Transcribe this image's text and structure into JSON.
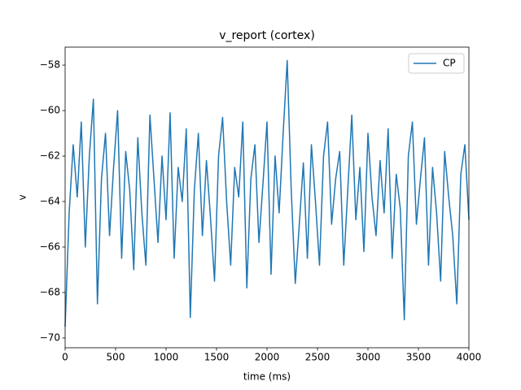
{
  "chart_data": {
    "type": "line",
    "title": "v_report (cortex)",
    "x_label": "time (ms)",
    "y_label": "v",
    "x": [
      0,
      40,
      80,
      120,
      160,
      200,
      240,
      280,
      320,
      360,
      400,
      440,
      480,
      520,
      560,
      600,
      640,
      680,
      720,
      760,
      800,
      840,
      880,
      920,
      960,
      1000,
      1040,
      1080,
      1120,
      1160,
      1200,
      1240,
      1280,
      1320,
      1360,
      1400,
      1440,
      1480,
      1520,
      1560,
      1600,
      1640,
      1680,
      1720,
      1760,
      1800,
      1840,
      1880,
      1920,
      1960,
      2000,
      2040,
      2080,
      2120,
      2160,
      2200,
      2240,
      2280,
      2320,
      2360,
      2400,
      2440,
      2480,
      2520,
      2560,
      2600,
      2640,
      2680,
      2720,
      2760,
      2800,
      2840,
      2880,
      2920,
      2960,
      3000,
      3040,
      3080,
      3120,
      3160,
      3200,
      3240,
      3280,
      3320,
      3360,
      3400,
      3440,
      3480,
      3520,
      3560,
      3600,
      3640,
      3680,
      3720,
      3760,
      3800,
      3840,
      3880,
      3920,
      3960,
      4000
    ],
    "series": [
      {
        "name": "CP",
        "color": "#1f77b4",
        "values": [
          -69.5,
          -64.5,
          -61.5,
          -63.8,
          -60.5,
          -66.0,
          -62.0,
          -59.5,
          -68.5,
          -63.0,
          -61.0,
          -65.5,
          -62.5,
          -60.0,
          -66.5,
          -61.8,
          -63.5,
          -67.0,
          -61.2,
          -64.5,
          -66.8,
          -60.2,
          -63.0,
          -65.8,
          -62.0,
          -64.8,
          -60.1,
          -66.5,
          -62.5,
          -64.0,
          -60.8,
          -69.1,
          -63.5,
          -61.0,
          -65.5,
          -62.2,
          -64.7,
          -67.5,
          -62.0,
          -60.3,
          -64.0,
          -66.8,
          -62.5,
          -63.8,
          -60.5,
          -67.8,
          -63.0,
          -61.5,
          -65.8,
          -63.2,
          -60.5,
          -67.2,
          -62.0,
          -64.5,
          -61.0,
          -57.8,
          -63.5,
          -67.6,
          -65.0,
          -62.3,
          -66.5,
          -61.5,
          -64.0,
          -66.8,
          -62.0,
          -60.5,
          -65.0,
          -63.0,
          -61.8,
          -66.8,
          -63.5,
          -60.2,
          -64.8,
          -62.5,
          -66.2,
          -61.0,
          -63.8,
          -65.5,
          -62.2,
          -64.5,
          -60.8,
          -66.5,
          -62.8,
          -64.3,
          -69.2,
          -62.0,
          -60.5,
          -65.0,
          -63.0,
          -61.2,
          -66.8,
          -62.5,
          -64.5,
          -67.5,
          -61.8,
          -63.8,
          -65.5,
          -68.5,
          -62.8,
          -61.5,
          -64.8
        ]
      }
    ],
    "xlim": [
      0,
      4000
    ],
    "xticks": [
      0,
      500,
      1000,
      1500,
      2000,
      2500,
      3000,
      3500,
      4000
    ],
    "ylim": [
      -70.43,
      -57.21
    ],
    "yticks": [
      {
        "value": -70,
        "label": "−70"
      },
      {
        "value": -68,
        "label": "−68"
      },
      {
        "value": -66,
        "label": "−66"
      },
      {
        "value": -64,
        "label": "−64"
      },
      {
        "value": -62,
        "label": "−62"
      },
      {
        "value": -60,
        "label": "−60"
      },
      {
        "value": -58,
        "label": "−58"
      }
    ],
    "legend": "upper right",
    "grid": false
  }
}
